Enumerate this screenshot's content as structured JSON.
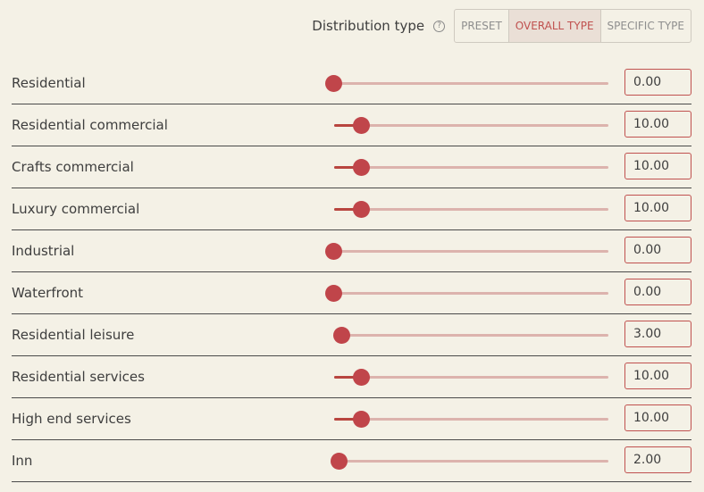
{
  "header": {
    "distribution_label": "Distribution type",
    "help_glyph": "?",
    "tabs": [
      {
        "label": "PRESET",
        "active": false
      },
      {
        "label": "OVERALL TYPE",
        "active": true
      },
      {
        "label": "SPECIFIC TYPE",
        "active": false
      }
    ]
  },
  "slider_range": {
    "min": 0,
    "max": 100
  },
  "colors": {
    "accent": "#c0454a",
    "track": "#dcb3ad",
    "background": "#f4f1e6"
  },
  "rows": [
    {
      "label": "Residential",
      "value": "0.00",
      "level": 0
    },
    {
      "label": "Residential commercial",
      "value": "10.00",
      "level": 10
    },
    {
      "label": "Crafts commercial",
      "value": "10.00",
      "level": 10
    },
    {
      "label": "Luxury commercial",
      "value": "10.00",
      "level": 10
    },
    {
      "label": "Industrial",
      "value": "0.00",
      "level": 0
    },
    {
      "label": "Waterfront",
      "value": "0.00",
      "level": 0
    },
    {
      "label": "Residential leisure",
      "value": "3.00",
      "level": 3
    },
    {
      "label": "Residential services",
      "value": "10.00",
      "level": 10
    },
    {
      "label": "High end services",
      "value": "10.00",
      "level": 10
    },
    {
      "label": "Inn",
      "value": "2.00",
      "level": 2
    }
  ]
}
